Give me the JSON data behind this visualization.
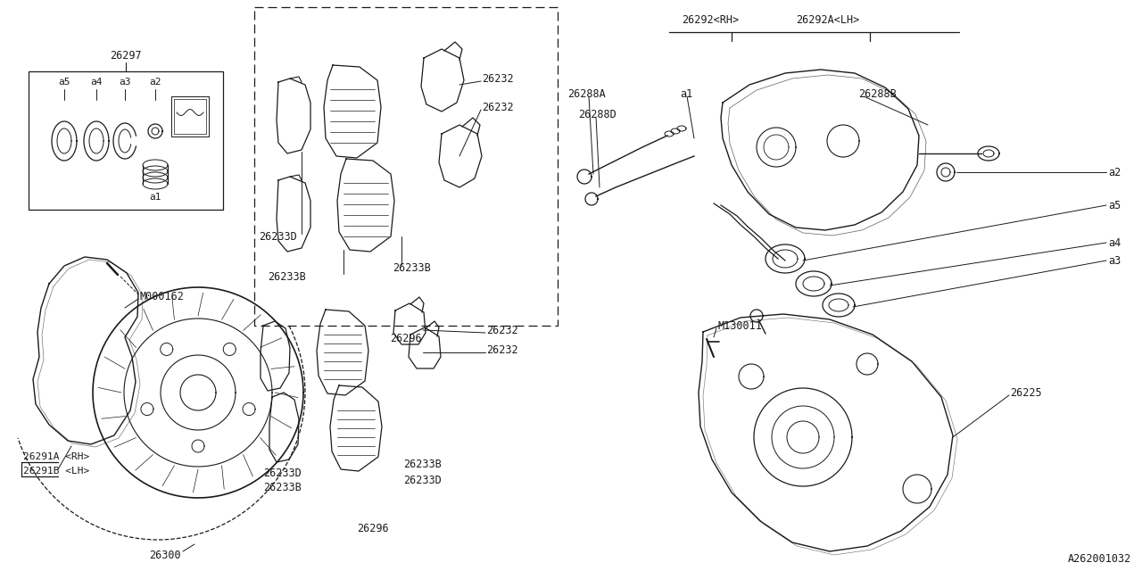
{
  "bg_color": "#ffffff",
  "line_color": "#1a1a1a",
  "font_family": "monospace",
  "font_size": 8.5,
  "diagram_id": "A262001032",
  "title_26297": "26297",
  "title_26296_top": "26296",
  "title_26296_bot": "26296",
  "title_M000162": "M000162",
  "title_26291A": "26291A <RH>",
  "title_26291B": "26291B <LH>",
  "title_26300": "26300",
  "title_26292RH": "26292<RH>",
  "title_26292ALH": "26292A<LH>",
  "title_26288A": "26288A",
  "title_26288D": "26288D",
  "title_26288B": "26288B",
  "title_a1": "a1",
  "title_a2": "a2",
  "title_a3": "a3",
  "title_a4": "a4",
  "title_a5": "a5",
  "title_M130011": "M130011",
  "title_26225": "26225",
  "title_26233D": "26233D",
  "title_26233B": "26233B",
  "title_26232": "26232"
}
